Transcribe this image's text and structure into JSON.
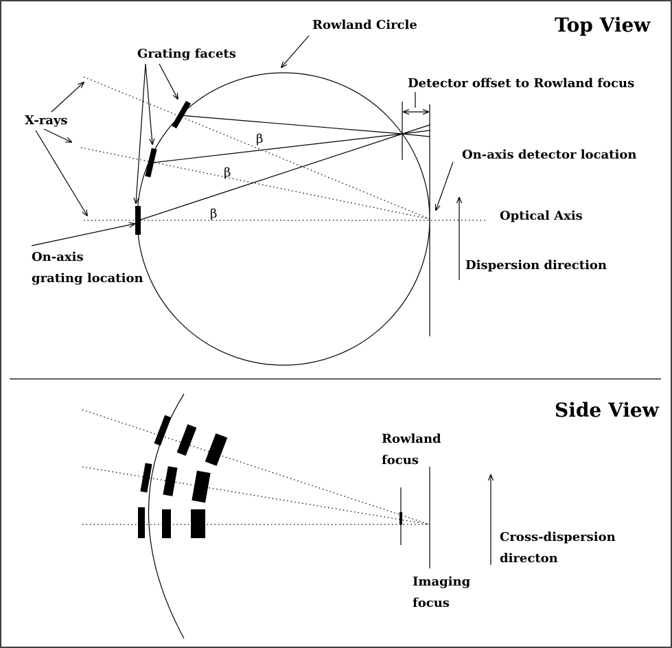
{
  "top_view": {
    "title": "Top View",
    "labels": {
      "rowland_circle": "Rowland Circle",
      "grating_facets": "Grating facets",
      "detector_offset": "Detector offset to Rowland focus",
      "xrays": "X-rays",
      "onaxis_detector": "On-axis detector location",
      "optical_axis": "Optical Axis",
      "onaxis_grating_1": "On-axis",
      "onaxis_grating_2": "grating location",
      "dispersion_direction": "Dispersion direction"
    },
    "beta_symbol": "β"
  },
  "side_view": {
    "title": "Side View",
    "labels": {
      "rowland_focus_1": "Rowland",
      "rowland_focus_2": "focus",
      "imaging_focus_1": "Imaging",
      "imaging_focus_2": "focus",
      "cross_dispersion_1": "Cross-dispersion",
      "cross_dispersion_2": "directon"
    }
  }
}
